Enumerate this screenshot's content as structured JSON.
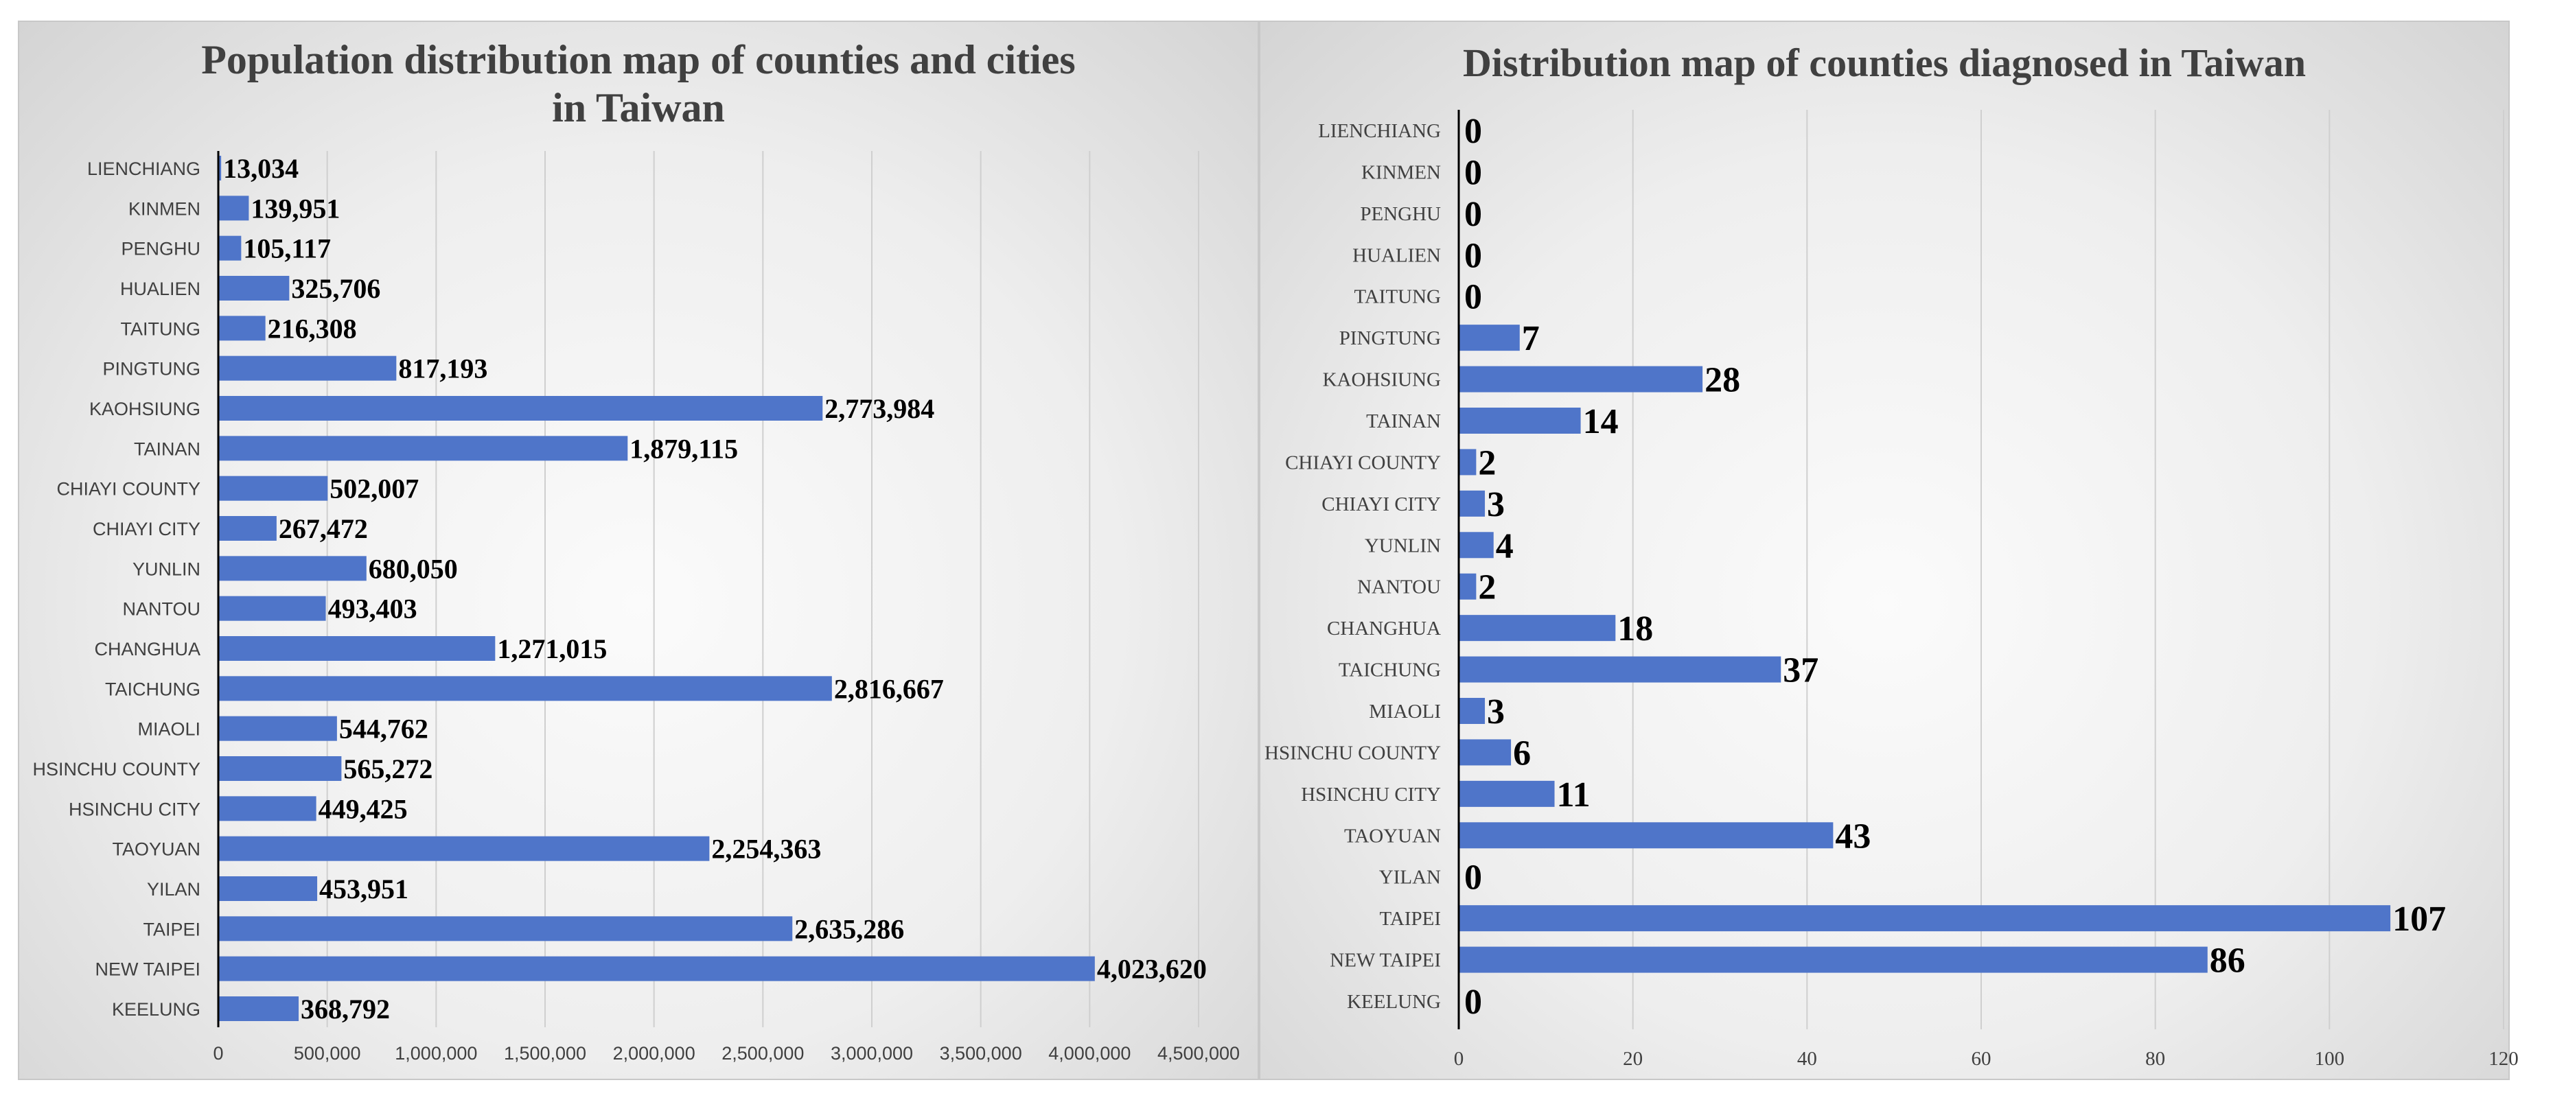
{
  "colors": {
    "bar": "#4f75c9",
    "grid": "#cfcfcf",
    "axis": "#000000"
  },
  "chart_data": [
    {
      "type": "bar",
      "orientation": "horizontal",
      "title": "Population distribution map of counties and cities in Taiwan",
      "title_lines": [
        "Population distribution map of counties and cities",
        "in Taiwan"
      ],
      "categories": [
        "LIENCHIANG",
        "KINMEN",
        "PENGHU",
        "HUALIEN",
        "TAITUNG",
        "PINGTUNG",
        "KAOHSIUNG",
        "TAINAN",
        "CHIAYI COUNTY",
        "CHIAYI CITY",
        "YUNLIN",
        "NANTOU",
        "CHANGHUA",
        "TAICHUNG",
        "MIAOLI",
        "HSINCHU COUNTY",
        "HSINCHU CITY",
        "TAOYUAN",
        "YILAN",
        "TAIPEI",
        "NEW TAIPEI",
        "KEELUNG"
      ],
      "values": [
        13034,
        139951,
        105117,
        325706,
        216308,
        817193,
        2773984,
        1879115,
        502007,
        267472,
        680050,
        493403,
        1271015,
        2816667,
        544762,
        565272,
        449425,
        2254363,
        453951,
        2635286,
        4023620,
        368792
      ],
      "data_labels": [
        "13,034",
        "139,951",
        "105,117",
        "325,706",
        "216,308",
        "817,193",
        "2,773,984",
        "1,879,115",
        "502,007",
        "267,472",
        "680,050",
        "493,403",
        "1,271,015",
        "2,816,667",
        "544,762",
        "565,272",
        "449,425",
        "2,254,363",
        "453,951",
        "2,635,286",
        "4,023,620",
        "368,792"
      ],
      "xlim": [
        0,
        4500000
      ],
      "ticks": [
        0,
        500000,
        1000000,
        1500000,
        2000000,
        2500000,
        3000000,
        3500000,
        4000000,
        4500000
      ],
      "tick_labels": [
        "0",
        "500,000",
        "1,000,000",
        "1,500,000",
        "2,000,000",
        "2,500,000",
        "3,000,000",
        "3,500,000",
        "4,000,000",
        "4,500,000"
      ],
      "grid": true
    },
    {
      "type": "bar",
      "orientation": "horizontal",
      "title": "Distribution map of counties diagnosed in Taiwan",
      "categories": [
        "LIENCHIANG",
        "KINMEN",
        "PENGHU",
        "HUALIEN",
        "TAITUNG",
        "PINGTUNG",
        "KAOHSIUNG",
        "TAINAN",
        "CHIAYI COUNTY",
        "CHIAYI CITY",
        "YUNLIN",
        "NANTOU",
        "CHANGHUA",
        "TAICHUNG",
        "MIAOLI",
        "HSINCHU COUNTY",
        "HSINCHU CITY",
        "TAOYUAN",
        "YILAN",
        "TAIPEI",
        "NEW TAIPEI",
        "KEELUNG"
      ],
      "values": [
        0,
        0,
        0,
        0,
        0,
        7,
        28,
        14,
        2,
        3,
        4,
        2,
        18,
        37,
        3,
        6,
        11,
        43,
        0,
        107,
        86,
        0
      ],
      "data_labels": [
        "0",
        "0",
        "0",
        "0",
        "0",
        "7",
        "28",
        "14",
        "2",
        "3",
        "4",
        "2",
        "18",
        "37",
        "3",
        "6",
        "11",
        "43",
        "0",
        "107",
        "86",
        "0"
      ],
      "xlim": [
        0,
        120
      ],
      "ticks": [
        0,
        20,
        40,
        60,
        80,
        100,
        120
      ],
      "tick_labels": [
        "0",
        "20",
        "40",
        "60",
        "80",
        "100",
        "120"
      ],
      "grid": true
    }
  ]
}
